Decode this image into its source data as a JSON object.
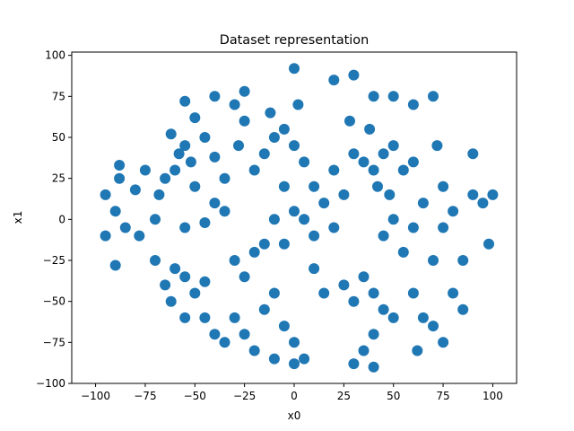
{
  "chart_data": {
    "type": "scatter",
    "title": "Dataset representation",
    "xlabel": "x0",
    "ylabel": "x1",
    "xlim": [
      -112,
      112
    ],
    "ylim": [
      -100,
      102
    ],
    "xticks": [
      -100,
      -75,
      -50,
      -25,
      0,
      25,
      50,
      75,
      100
    ],
    "yticks": [
      -100,
      -75,
      -50,
      -25,
      0,
      25,
      50,
      75,
      100
    ],
    "grid": false,
    "color": "#1f77b4",
    "series": [
      {
        "points": [
          [
            -58,
            40
          ],
          [
            -55,
            45
          ],
          [
            -52,
            35
          ],
          [
            -60,
            30
          ],
          [
            -65,
            25
          ],
          [
            -50,
            20
          ],
          [
            -45,
            50
          ],
          [
            -62,
            52
          ],
          [
            -68,
            15
          ],
          [
            -70,
            0
          ],
          [
            -55,
            -5
          ],
          [
            -45,
            -2
          ],
          [
            -40,
            10
          ],
          [
            -35,
            5
          ],
          [
            -60,
            -30
          ],
          [
            -55,
            -35
          ],
          [
            -65,
            -40
          ],
          [
            -50,
            -45
          ],
          [
            -45,
            -38
          ],
          [
            -70,
            -25
          ],
          [
            -62,
            -50
          ],
          [
            -30,
            -60
          ],
          [
            -25,
            -70
          ],
          [
            -15,
            -55
          ],
          [
            -10,
            -45
          ],
          [
            -5,
            -65
          ],
          [
            0,
            -75
          ],
          [
            5,
            -85
          ],
          [
            -20,
            -80
          ],
          [
            -35,
            -75
          ],
          [
            -40,
            -70
          ],
          [
            -15,
            40
          ],
          [
            -10,
            50
          ],
          [
            -5,
            55
          ],
          [
            -20,
            30
          ],
          [
            -25,
            60
          ],
          [
            -12,
            65
          ],
          [
            0,
            45
          ],
          [
            -5,
            20
          ],
          [
            -30,
            70
          ],
          [
            -28,
            45
          ],
          [
            5,
            35
          ],
          [
            2,
            70
          ],
          [
            0,
            5
          ],
          [
            5,
            0
          ],
          [
            10,
            -10
          ],
          [
            -5,
            -15
          ],
          [
            15,
            10
          ],
          [
            20,
            -5
          ],
          [
            10,
            20
          ],
          [
            -10,
            0
          ],
          [
            30,
            40
          ],
          [
            35,
            35
          ],
          [
            40,
            30
          ],
          [
            45,
            40
          ],
          [
            50,
            45
          ],
          [
            38,
            55
          ],
          [
            28,
            60
          ],
          [
            42,
            20
          ],
          [
            55,
            30
          ],
          [
            60,
            35
          ],
          [
            48,
            15
          ],
          [
            50,
            0
          ],
          [
            45,
            -10
          ],
          [
            55,
            -20
          ],
          [
            60,
            -5
          ],
          [
            65,
            10
          ],
          [
            35,
            -35
          ],
          [
            40,
            -45
          ],
          [
            30,
            -50
          ],
          [
            45,
            -55
          ],
          [
            40,
            -70
          ],
          [
            35,
            -80
          ],
          [
            50,
            -60
          ],
          [
            25,
            -40
          ],
          [
            -95,
            15
          ],
          [
            -90,
            5
          ],
          [
            -85,
            -5
          ],
          [
            -95,
            -10
          ],
          [
            -88,
            25
          ],
          [
            -90,
            -28
          ],
          [
            -80,
            18
          ],
          [
            -78,
            -10
          ],
          [
            90,
            15
          ],
          [
            95,
            10
          ],
          [
            100,
            15
          ],
          [
            98,
            -15
          ],
          [
            85,
            -25
          ],
          [
            80,
            -45
          ],
          [
            85,
            -55
          ],
          [
            90,
            40
          ],
          [
            75,
            20
          ],
          [
            75,
            -5
          ],
          [
            80,
            5
          ],
          [
            70,
            -25
          ],
          [
            72,
            45
          ],
          [
            70,
            75
          ],
          [
            60,
            70
          ],
          [
            50,
            75
          ],
          [
            40,
            75
          ],
          [
            30,
            88
          ],
          [
            20,
            85
          ],
          [
            0,
            92
          ],
          [
            -25,
            78
          ],
          [
            -40,
            75
          ],
          [
            -55,
            72
          ],
          [
            -50,
            62
          ],
          [
            -75,
            30
          ],
          [
            -88,
            33
          ],
          [
            -20,
            -20
          ],
          [
            -25,
            -35
          ],
          [
            -30,
            -25
          ],
          [
            -15,
            -15
          ],
          [
            10,
            -30
          ],
          [
            15,
            -45
          ],
          [
            20,
            30
          ],
          [
            25,
            15
          ],
          [
            -40,
            38
          ],
          [
            -35,
            25
          ],
          [
            -45,
            -60
          ],
          [
            -55,
            -60
          ],
          [
            60,
            -45
          ],
          [
            65,
            -60
          ],
          [
            75,
            -75
          ],
          [
            70,
            -65
          ],
          [
            62,
            -80
          ],
          [
            40,
            -90
          ],
          [
            30,
            -88
          ],
          [
            0,
            -88
          ],
          [
            -10,
            -85
          ]
        ]
      }
    ]
  }
}
